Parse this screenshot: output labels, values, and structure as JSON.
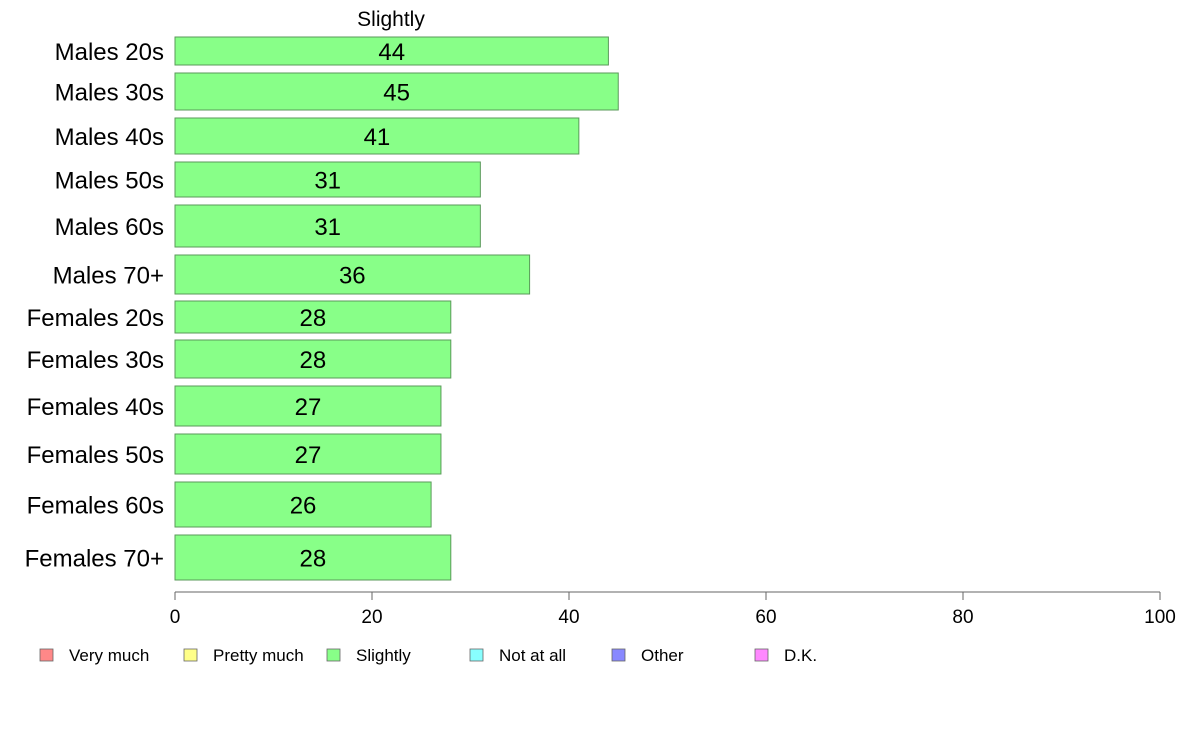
{
  "chart_data": {
    "type": "bar",
    "orientation": "horizontal",
    "title": "Slightly",
    "categories": [
      "Males 20s",
      "Males 30s",
      "Males 40s",
      "Males 50s",
      "Males 60s",
      "Males 70+",
      "Females 20s",
      "Females 30s",
      "Females 40s",
      "Females 50s",
      "Females 60s",
      "Females 70+"
    ],
    "series": [
      {
        "name": "Slightly",
        "color": "#88ff88",
        "values": [
          44,
          45,
          41,
          31,
          31,
          36,
          28,
          28,
          27,
          27,
          26,
          28
        ],
        "labels": [
          "44",
          "45",
          "41",
          "31",
          "31",
          "36",
          "28",
          "28",
          "27",
          "27",
          "26",
          "28"
        ]
      }
    ],
    "xlim": [
      0,
      100
    ],
    "xticks": [
      0,
      20,
      40,
      60,
      80,
      100
    ],
    "xtick_labels": [
      "0",
      "20",
      "40",
      "60",
      "80",
      "100"
    ],
    "grid": false,
    "legend_position": "bottom",
    "legend": [
      {
        "label": "Very much",
        "color": "#ff8888"
      },
      {
        "label": "Pretty much",
        "color": "#ffff88"
      },
      {
        "label": "Slightly",
        "color": "#88ff88"
      },
      {
        "label": "Not at all",
        "color": "#88ffff"
      },
      {
        "label": "Other",
        "color": "#8888ff"
      },
      {
        "label": "D.K.",
        "color": "#ff88ff"
      }
    ]
  }
}
